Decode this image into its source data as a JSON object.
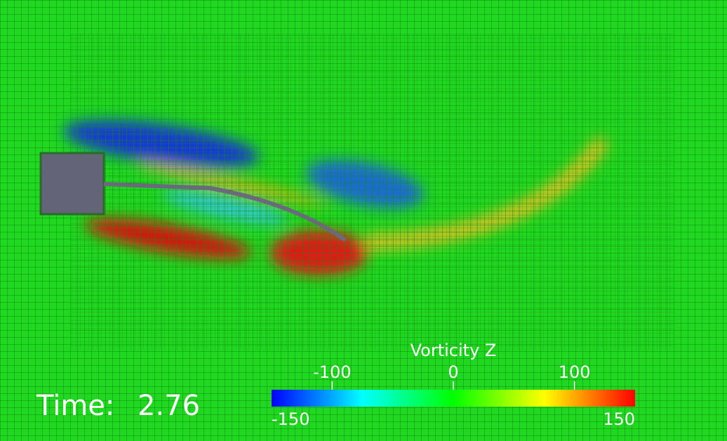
{
  "time": {
    "label": "Time:",
    "value": 2.76
  },
  "colorbar": {
    "title": "Vorticity Z",
    "range": [
      -150,
      150
    ],
    "ticks": [
      -100,
      0,
      100
    ],
    "colors": [
      "#0000ff",
      "#00ffff",
      "#00ff00",
      "#ffff00",
      "#ff0000"
    ]
  }
}
